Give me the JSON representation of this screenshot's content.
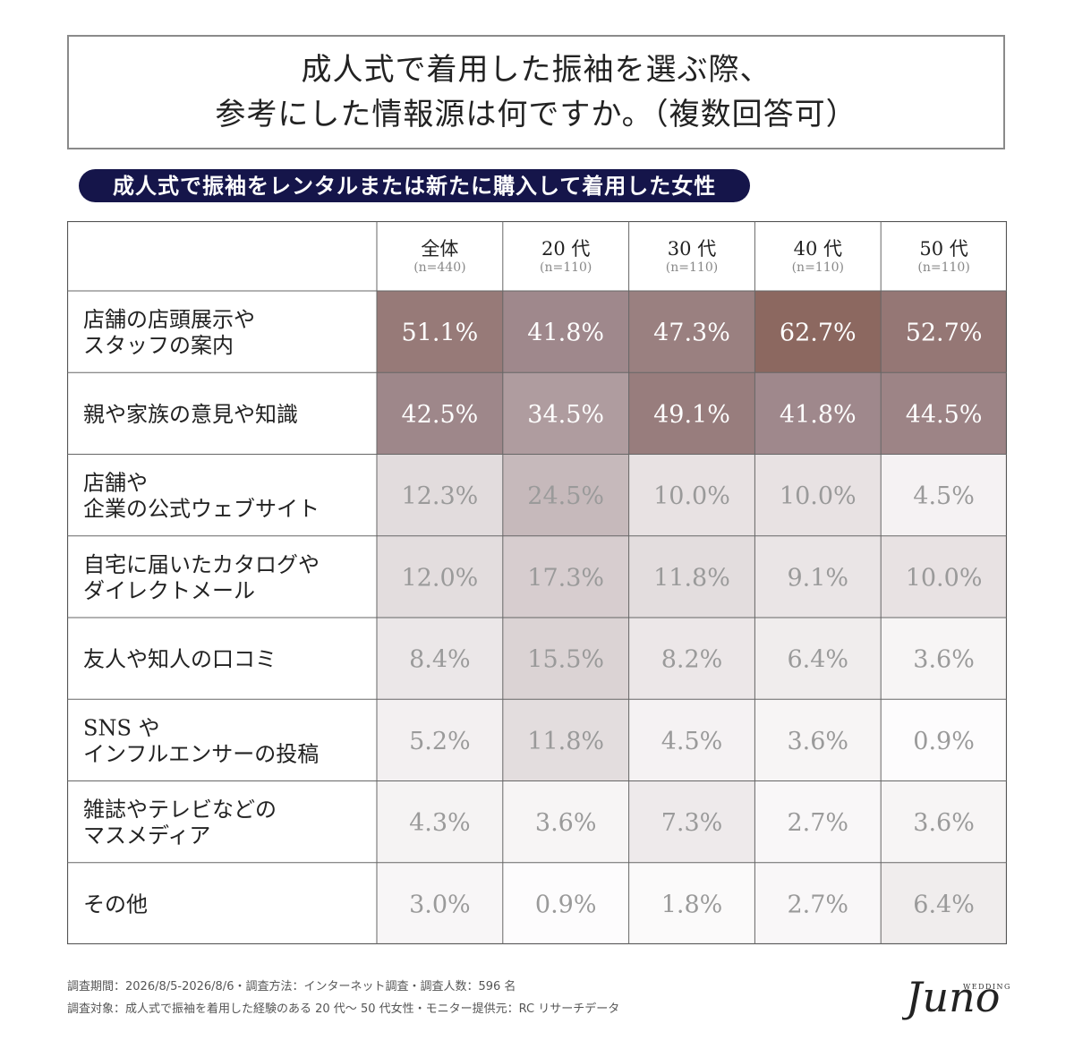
{
  "title": {
    "line1": "成人式で着用した振袖を選ぶ際、",
    "line2": "参考にした情報源は何ですか。（複数回答可）"
  },
  "subtitle": "成人式で振袖をレンタルまたは新たに購入して着用した女性",
  "chart_data": {
    "type": "table",
    "columns": [
      {
        "label": "全体",
        "n": "(n=440)"
      },
      {
        "label": "20 代",
        "n": "(n=110)"
      },
      {
        "label": "30 代",
        "n": "(n=110)"
      },
      {
        "label": "40 代",
        "n": "(n=110)"
      },
      {
        "label": "50 代",
        "n": "(n=110)"
      }
    ],
    "rows": [
      {
        "label": [
          "店舗の店頭展示や",
          "スタッフの案内"
        ],
        "values": [
          51.1,
          41.8,
          47.3,
          62.7,
          52.7
        ]
      },
      {
        "label": [
          "親や家族の意見や知識"
        ],
        "values": [
          42.5,
          34.5,
          49.1,
          41.8,
          44.5
        ]
      },
      {
        "label": [
          "店舗や",
          "企業の公式ウェブサイト"
        ],
        "values": [
          12.3,
          24.5,
          10.0,
          10.0,
          4.5
        ]
      },
      {
        "label": [
          "自宅に届いたカタログや",
          "ダイレクトメール"
        ],
        "values": [
          12.0,
          17.3,
          11.8,
          9.1,
          10.0
        ]
      },
      {
        "label": [
          "友人や知人の口コミ"
        ],
        "values": [
          8.4,
          15.5,
          8.2,
          6.4,
          3.6
        ]
      },
      {
        "label": [
          "SNS や",
          "インフルエンサーの投稿"
        ],
        "values": [
          5.2,
          11.8,
          4.5,
          3.6,
          0.9
        ]
      },
      {
        "label": [
          "雑誌やテレビなどの",
          "マスメディア"
        ],
        "values": [
          4.3,
          3.6,
          7.3,
          2.7,
          3.6
        ]
      },
      {
        "label": [
          "その他"
        ],
        "values": [
          3.0,
          0.9,
          1.8,
          2.7,
          6.4
        ]
      }
    ],
    "unit": "%"
  },
  "footnote": {
    "line1": "調査期間：2026/8/5-2026/8/6・調査方法：インターネット調査・調査人数：596 名",
    "line2": "調査対象：成人式で振袖を着用した経験のある 20 代〜 50 代女性・モニター提供元：RC リサーチデータ"
  },
  "logo": {
    "main": "Juno",
    "sub": "WEDDINGS"
  },
  "colors": {
    "dark": "#8c6860",
    "mid": "#a88e8e",
    "light": "#b8a3a8",
    "pill": "#15154a"
  }
}
